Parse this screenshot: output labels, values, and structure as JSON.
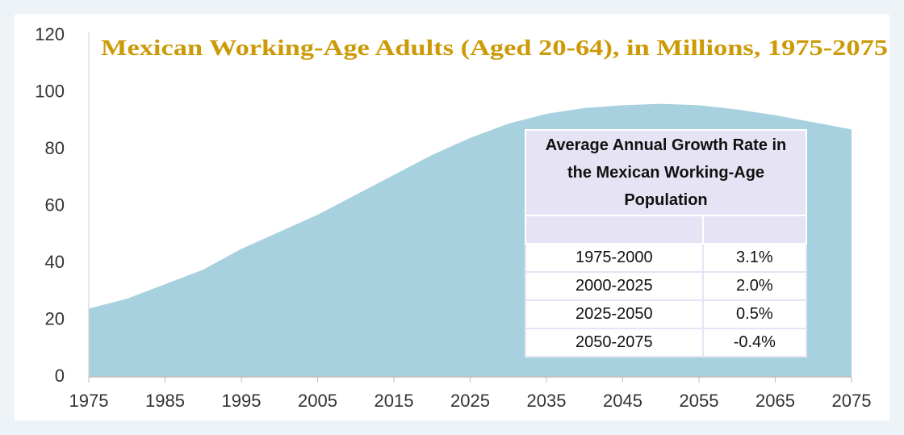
{
  "chart_data": {
    "type": "area",
    "title": "Mexican Working-Age Adults (Aged 20-64), in Millions, 1975-2075",
    "x": [
      1975,
      1980,
      1985,
      1990,
      1995,
      2000,
      2005,
      2010,
      2015,
      2020,
      2025,
      2030,
      2035,
      2040,
      2045,
      2050,
      2055,
      2060,
      2065,
      2070,
      2075
    ],
    "values": [
      24,
      27.5,
      32.6,
      37.7,
      45,
      51,
      57,
      64,
      71,
      78,
      84,
      89,
      92.5,
      94.5,
      95.5,
      96,
      95.5,
      94,
      92,
      89.5,
      87
    ],
    "color": "#a8d1df",
    "xlim": [
      1975,
      2075
    ],
    "xticks": [
      1975,
      1985,
      1995,
      2005,
      2015,
      2025,
      2035,
      2045,
      2055,
      2065,
      2075
    ],
    "ylim": [
      0,
      120
    ],
    "yticks": [
      0,
      20,
      40,
      60,
      80,
      100,
      120
    ]
  },
  "table": {
    "title": "Average Annual Growth Rate in the Mexican Working-Age Population",
    "rows": [
      [
        "1975-2000",
        "3.1%"
      ],
      [
        "2000-2025",
        "2.0%"
      ],
      [
        "2025-2050",
        "0.5%"
      ],
      [
        "2050-2075",
        "-0.4%"
      ]
    ]
  }
}
